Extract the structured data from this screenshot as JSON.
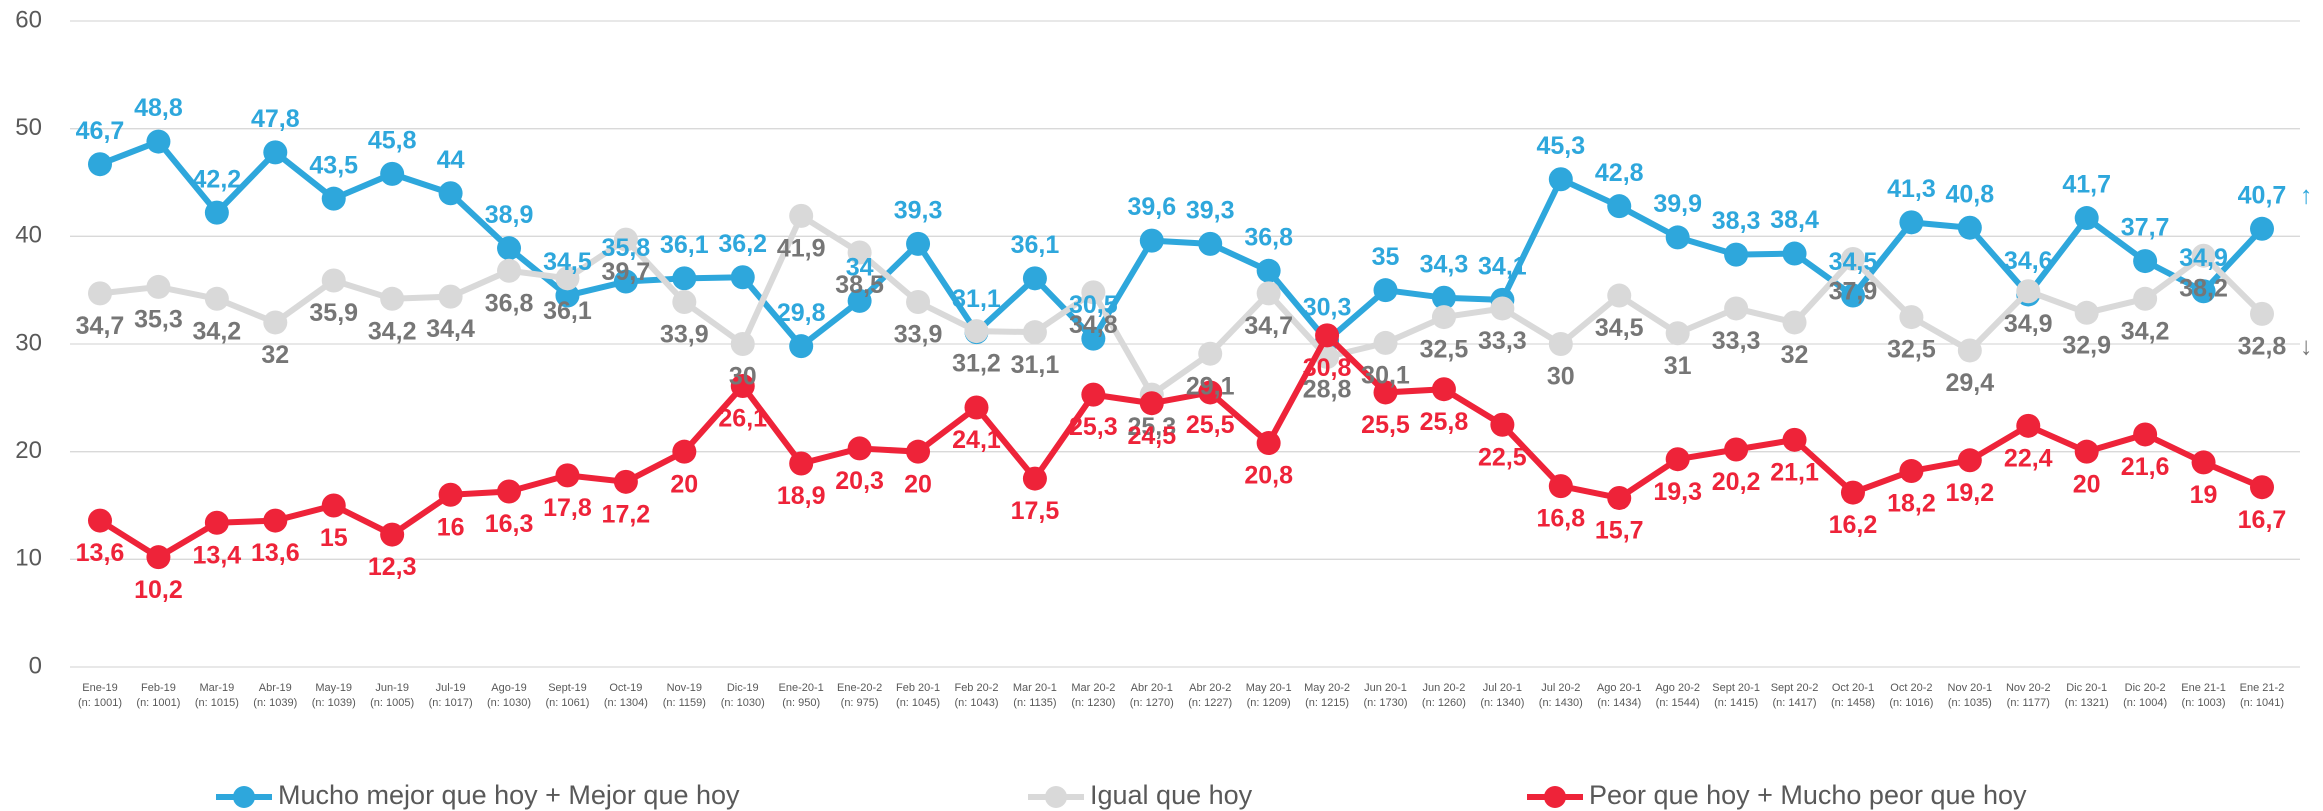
{
  "chart_data": {
    "type": "line",
    "categories": [
      "Ene-19",
      "Feb-19",
      "Mar-19",
      "Abr-19",
      "May-19",
      "Jun-19",
      "Jul-19",
      "Ago-19",
      "Sept-19",
      "Oct-19",
      "Nov-19",
      "Dic-19",
      "Ene-20-1",
      "Ene-20-2",
      "Feb 20-1",
      "Feb 20-2",
      "Mar 20-1",
      "Mar 20-2",
      "Abr 20-1",
      "Abr 20-2",
      "May 20-1",
      "May 20-2",
      "Jun 20-1",
      "Jun 20-2",
      "Jul 20-1",
      "Jul 20-2",
      "Ago 20-1",
      "Ago 20-2",
      "Sept 20-1",
      "Sept 20-2",
      "Oct 20-1",
      "Oct 20-2",
      "Nov 20-1",
      "Nov 20-2",
      "Dic 20-1",
      "Dic 20-2",
      "Ene 21-1",
      "Ene 21-2"
    ],
    "sample_sizes": [
      "(n: 1001)",
      "(n: 1001)",
      "(n: 1015)",
      "(n: 1039)",
      "(n: 1039)",
      "(n: 1005)",
      "(n: 1017)",
      "(n: 1030)",
      "(n: 1061)",
      "(n: 1304)",
      "(n: 1159)",
      "(n: 1030)",
      "(n: 950)",
      "(n: 975)",
      "(n: 1045)",
      "(n: 1043)",
      "(n: 1135)",
      "(n: 1230)",
      "(n: 1270)",
      "(n: 1227)",
      "(n: 1209)",
      "(n: 1215)",
      "(n: 1730)",
      "(n: 1260)",
      "(n: 1340)",
      "(n: 1430)",
      "(n: 1434)",
      "(n: 1544)",
      "(n: 1415)",
      "(n: 1417)",
      "(n: 1458)",
      "(n: 1016)",
      "(n: 1035)",
      "(n: 1177)",
      "(n: 1321)",
      "(n: 1004)",
      "(n: 1003)",
      "(n: 1041)"
    ],
    "series": [
      {
        "name": "Mucho mejor que hoy + Mejor que hoy",
        "color": "#2ea7dc",
        "label_color": "#2ea7dc",
        "label_side": "above",
        "end_marker": "↑",
        "values": [
          46.7,
          48.8,
          42.2,
          47.8,
          43.5,
          45.8,
          44,
          38.9,
          34.5,
          35.8,
          36.1,
          36.2,
          29.8,
          34,
          39.3,
          31.1,
          36.1,
          30.5,
          39.6,
          39.3,
          36.8,
          30.3,
          35,
          34.3,
          34.1,
          45.3,
          42.8,
          39.9,
          38.3,
          38.4,
          34.5,
          41.3,
          40.8,
          34.6,
          41.7,
          37.7,
          34.9,
          40.7
        ],
        "value_labels": [
          "46,7",
          "48,8",
          "42,2",
          "47,8",
          "43,5",
          "45,8",
          "44",
          "38,9",
          "34,5",
          "35,8",
          "36,1",
          "36,2",
          "29,8",
          "34",
          "39,3",
          "31,1",
          "36,1",
          "30,5",
          "39,6",
          "39,3",
          "36,8",
          "30,3",
          "35",
          "34,3",
          "34,1",
          "45,3",
          "42,8",
          "39,9",
          "38,3",
          "38,4",
          "34,5",
          "41,3",
          "40,8",
          "34,6",
          "41,7",
          "37,7",
          "34,9",
          "40,7"
        ]
      },
      {
        "name": "Igual que hoy",
        "color": "#d9d9d9",
        "label_color": "#767676",
        "label_side": "below",
        "end_marker": "↓",
        "values": [
          34.7,
          35.3,
          34.2,
          32,
          35.9,
          34.2,
          34.4,
          36.8,
          36.1,
          39.7,
          33.9,
          30,
          41.9,
          38.5,
          33.9,
          31.2,
          31.1,
          34.8,
          25.3,
          29.1,
          34.7,
          28.8,
          30.1,
          32.5,
          33.3,
          30,
          34.5,
          31,
          33.3,
          32,
          37.9,
          32.5,
          29.4,
          34.9,
          32.9,
          34.2,
          38.2,
          32.8
        ],
        "value_labels": [
          "34,7",
          "35,3",
          "34,2",
          "32",
          "35,9",
          "34,2",
          "34,4",
          "36,8",
          "36,1",
          "39,7",
          "33,9",
          "30",
          "41,9",
          "38,5",
          "33,9",
          "31,2",
          "31,1",
          "34,8",
          "25,3",
          "29,1",
          "34,7",
          "28,8",
          "30,1",
          "32,5",
          "33,3",
          "30",
          "34,5",
          "31",
          "33,3",
          "32",
          "37,9",
          "32,5",
          "29,4",
          "34,9",
          "32,9",
          "34,2",
          "38,2",
          "32,8"
        ]
      },
      {
        "name": "Peor que hoy + Mucho peor que hoy",
        "color": "#ee2339",
        "label_color": "#ee2339",
        "label_side": "below",
        "values": [
          13.6,
          10.2,
          13.4,
          13.6,
          15,
          12.3,
          16,
          16.3,
          17.8,
          17.2,
          20,
          26.1,
          18.9,
          20.3,
          20,
          24.1,
          17.5,
          25.3,
          24.5,
          25.5,
          20.8,
          30.8,
          25.5,
          25.8,
          22.5,
          16.8,
          15.7,
          19.3,
          20.2,
          21.1,
          16.2,
          18.2,
          19.2,
          22.4,
          20,
          21.6,
          19,
          16.7
        ],
        "value_labels": [
          "13,6",
          "10,2",
          "13,4",
          "13,6",
          "15",
          "12,3",
          "16",
          "16,3",
          "17,8",
          "17,2",
          "20",
          "26,1",
          "18,9",
          "20,3",
          "20",
          "24,1",
          "17,5",
          "25,3",
          "24,5",
          "25,5",
          "20,8",
          "30,8",
          "25,5",
          "25,8",
          "22,5",
          "16,8",
          "15,7",
          "19,3",
          "20,2",
          "21,1",
          "16,2",
          "18,2",
          "19,2",
          "22,4",
          "20",
          "21,6",
          "19",
          "16,7"
        ]
      }
    ],
    "ylim": [
      0,
      60
    ],
    "yticks": [
      0,
      10,
      20,
      30,
      40,
      50,
      60
    ],
    "grid": true,
    "legend": "bottom"
  }
}
